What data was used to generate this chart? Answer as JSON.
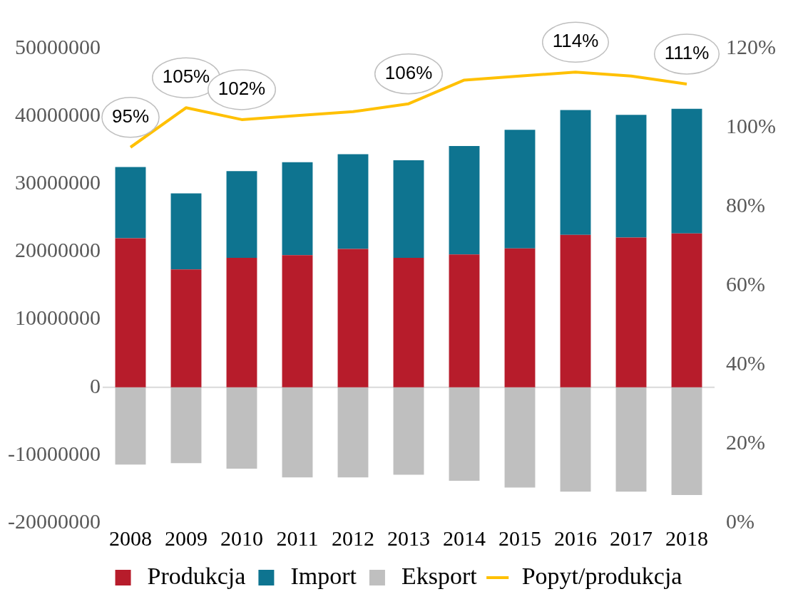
{
  "chart_data": {
    "type": "bar",
    "stacked": true,
    "categories": [
      "2008",
      "2009",
      "2010",
      "2011",
      "2012",
      "2013",
      "2014",
      "2015",
      "2016",
      "2017",
      "2018"
    ],
    "series": [
      {
        "name": "Produkcja",
        "color": "#b71c2b",
        "values": [
          22000000,
          17400000,
          19100000,
          19500000,
          20400000,
          19100000,
          19600000,
          20500000,
          22500000,
          22100000,
          22700000
        ]
      },
      {
        "name": "Import",
        "color": "#0e7490",
        "values": [
          10500000,
          11200000,
          12800000,
          13700000,
          14000000,
          14400000,
          16000000,
          17500000,
          18400000,
          18100000,
          18400000
        ]
      },
      {
        "name": "Eksport",
        "color": "#bfbfbf",
        "values": [
          -11400000,
          -11200000,
          -12000000,
          -13300000,
          -13300000,
          -12900000,
          -13800000,
          -14800000,
          -15400000,
          -15400000,
          -15900000
        ]
      },
      {
        "name": "Popyt/produkcja",
        "type": "line",
        "axis": "y2",
        "color": "#ffc000",
        "marker": "none",
        "values": [
          95,
          105,
          102,
          103,
          104,
          106,
          112,
          113,
          114,
          113,
          111
        ],
        "value_labels": [
          "95%",
          "105%",
          "102%",
          null,
          null,
          "106%",
          null,
          null,
          "114%",
          null,
          "111%"
        ]
      }
    ],
    "ylim": [
      -20000000,
      50000000
    ],
    "yticks": [
      -20000000,
      -10000000,
      0,
      10000000,
      20000000,
      30000000,
      40000000,
      50000000
    ],
    "y2lim": [
      0,
      120
    ],
    "y2ticks": [
      {
        "value": 0,
        "label": "0%"
      },
      {
        "value": 20,
        "label": "20%"
      },
      {
        "value": 40,
        "label": "40%"
      },
      {
        "value": 60,
        "label": "60%"
      },
      {
        "value": 80,
        "label": "80%"
      },
      {
        "value": 100,
        "label": "100%"
      },
      {
        "value": 120,
        "label": "120%"
      }
    ],
    "ref_lines": [
      {
        "axis": "y",
        "value": 0,
        "color": "#d9d9d9"
      }
    ],
    "grid": false,
    "legend": "bottom"
  }
}
